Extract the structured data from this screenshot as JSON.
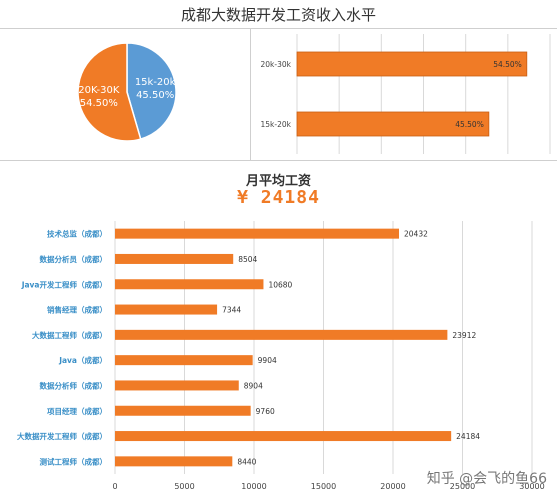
{
  "title": "成都大数据开发工资收入水平",
  "watermark": "知乎 @会飞的鱼66",
  "colors": {
    "orange": "#f07b26",
    "blue": "#5b9bd5",
    "grid": "#d9d9d9",
    "category_text": "#3a8fc7"
  },
  "chart_data": [
    {
      "type": "pie",
      "title": "",
      "slices": [
        {
          "label": "15k-20k",
          "value": 45.5,
          "display": "45.50%",
          "color": "#5b9bd5"
        },
        {
          "label": "20K-30K",
          "value": 54.5,
          "display": "54.50%",
          "color": "#f07b26"
        }
      ]
    },
    {
      "type": "bar",
      "orientation": "horizontal",
      "title": "",
      "categories": [
        "20k-30k",
        "15k-20k"
      ],
      "values": [
        54.5,
        45.5
      ],
      "data_labels": [
        "54.50%",
        "45.50%"
      ],
      "xlim": [
        0,
        60
      ],
      "grid": true
    },
    {
      "type": "bar",
      "orientation": "horizontal",
      "title": "月平均工资",
      "highlight_value": "¥ 24184",
      "categories": [
        "技术总监（成都）",
        "数据分析员（成都）",
        "Java开发工程师（成都）",
        "销售经理（成都）",
        "大数据工程师（成都）",
        "Java（成都）",
        "数据分析师（成都）",
        "项目经理（成都）",
        "大数据开发工程师（成都）",
        "测试工程师（成都）"
      ],
      "values": [
        20432,
        8504,
        10680,
        7344,
        23912,
        9904,
        8904,
        9760,
        24184,
        8440
      ],
      "xlim": [
        0,
        30000
      ],
      "xticks": [
        0,
        5000,
        10000,
        15000,
        20000,
        25000,
        30000
      ],
      "grid": true
    }
  ]
}
